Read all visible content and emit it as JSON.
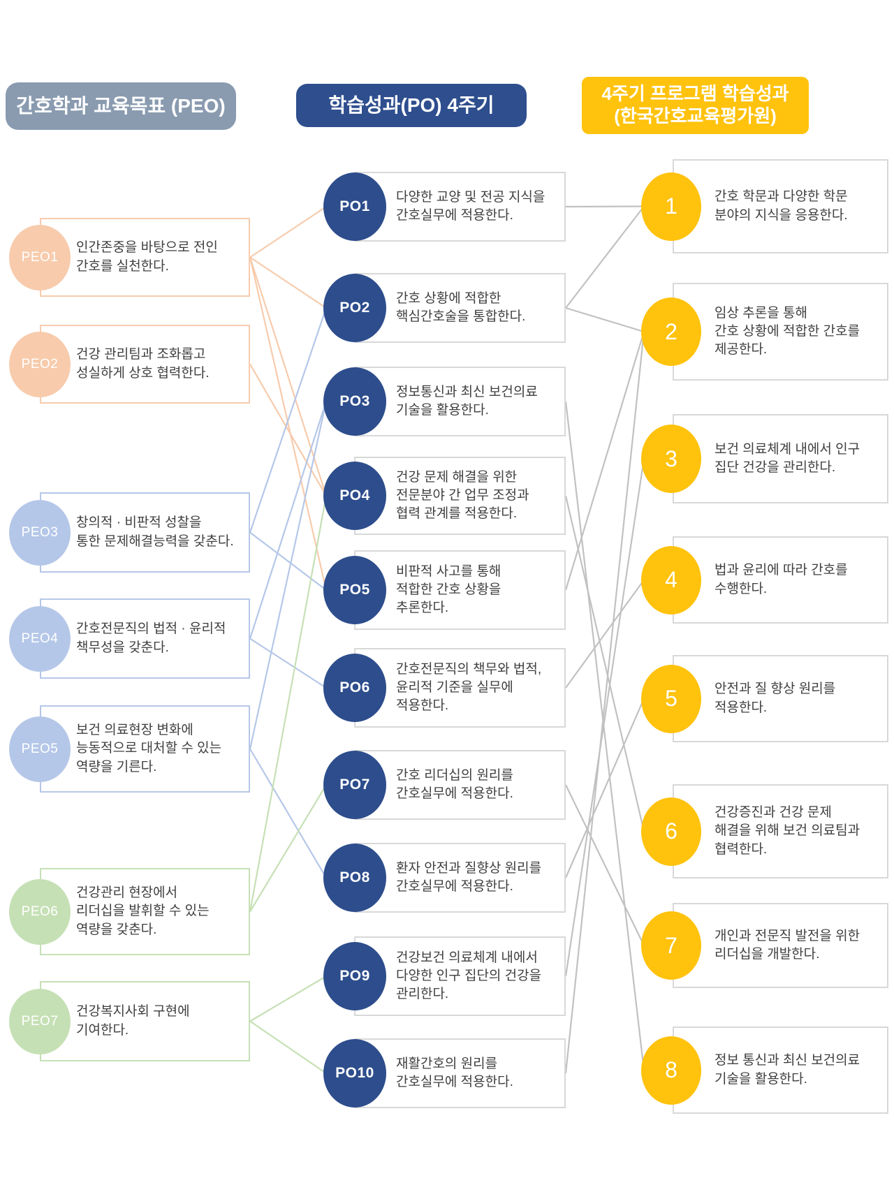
{
  "headers": {
    "peo": "간호학과 교육목표 (PEO)",
    "po": "학습성과(PO) 4주기",
    "kabone": "4주기 프로그램 학습성과\n(한국간호교육평가원)"
  },
  "colors": {
    "header_peo_bg": "#8a9bb0",
    "header_po_bg": "#2e4e8e",
    "header_kabone_bg": "#ffc20d",
    "peach": "#f7cbac",
    "light_blue": "#b5c7e8",
    "light_green": "#c6e0b5",
    "po_circle": "#2d4d8c",
    "k_circle": "#ffc20d",
    "gray_line": "#c1c1c1",
    "gray_border": "#d8d8d8",
    "text": "#3f3f3f"
  },
  "peo_items": [
    {
      "id": "PEO1",
      "label": "PEO1",
      "theme": "peach",
      "text": "인간존중을 바탕으로 전인\n간호를 실천한다."
    },
    {
      "id": "PEO2",
      "label": "PEO2",
      "theme": "peach",
      "text": "건강 관리팀과 조화롭고\n성실하게 상호 협력한다."
    },
    {
      "id": "PEO3",
      "label": "PEO3",
      "theme": "light_blue",
      "text": "창의적 · 비판적 성찰을\n통한 문제해결능력을 갖춘다."
    },
    {
      "id": "PEO4",
      "label": "PEO4",
      "theme": "light_blue",
      "text": "간호전문직의 법적 · 윤리적\n책무성을 갖춘다."
    },
    {
      "id": "PEO5",
      "label": "PEO5",
      "theme": "light_blue",
      "text": "보건 의료현장 변화에\n능동적으로 대처할 수 있는\n역량을 기른다."
    },
    {
      "id": "PEO6",
      "label": "PEO6",
      "theme": "light_green",
      "text": "건강관리 현장에서\n리더십을 발휘할 수 있는\n역량을 갖춘다."
    },
    {
      "id": "PEO7",
      "label": "PEO7",
      "theme": "light_green",
      "text": "건강복지사회 구현에\n기여한다."
    }
  ],
  "po_items": [
    {
      "id": "PO1",
      "label": "PO1",
      "text": "다양한 교양 및 전공 지식을\n간호실무에 적용한다."
    },
    {
      "id": "PO2",
      "label": "PO2",
      "text": "간호 상황에 적합한\n핵심간호술을 통합한다."
    },
    {
      "id": "PO3",
      "label": "PO3",
      "text": "정보통신과 최신 보건의료\n기술을 활용한다."
    },
    {
      "id": "PO4",
      "label": "PO4",
      "text": "건강 문제 해결을 위한\n전문분야 간 업무 조정과\n협력 관계를 적용한다."
    },
    {
      "id": "PO5",
      "label": "PO5",
      "text": "비판적 사고를 통해\n적합한 간호 상황을\n추론한다."
    },
    {
      "id": "PO6",
      "label": "PO6",
      "text": "간호전문직의 책무와 법적,\n윤리적 기준을 실무에\n적용한다."
    },
    {
      "id": "PO7",
      "label": "PO7",
      "text": "간호 리더십의 원리를\n간호실무에 적용한다."
    },
    {
      "id": "PO8",
      "label": "PO8",
      "text": "환자 안전과 질향상 원리를\n간호실무에 적용한다."
    },
    {
      "id": "PO9",
      "label": "PO9",
      "text": "건강보건 의료체계 내에서\n다양한 인구 집단의 건강을\n관리한다."
    },
    {
      "id": "PO10",
      "label": "PO10",
      "text": "재활간호의 원리를\n간호실무에 적용한다."
    }
  ],
  "kabone_items": [
    {
      "id": "K1",
      "label": "1",
      "text": "간호 학문과 다양한 학문\n분야의 지식을 응용한다."
    },
    {
      "id": "K2",
      "label": "2",
      "text": "임상 추론을 통해\n간호 상황에 적합한 간호를\n제공한다."
    },
    {
      "id": "K3",
      "label": "3",
      "text": "보건 의료체계 내에서 인구\n집단 건강을 관리한다."
    },
    {
      "id": "K4",
      "label": "4",
      "text": "법과 윤리에 따라 간호를\n수행한다."
    },
    {
      "id": "K5",
      "label": "5",
      "text": "안전과 질 향상 원리를\n적용한다."
    },
    {
      "id": "K6",
      "label": "6",
      "text": "건강증진과 건강 문제\n해결을 위해 보건 의료팀과\n협력한다."
    },
    {
      "id": "K7",
      "label": "7",
      "text": "개인과 전문직 발전을 위한\n리더십을 개발한다."
    },
    {
      "id": "K8",
      "label": "8",
      "text": "정보 통신과 최신 보건의료\n기술을 활용한다."
    }
  ],
  "connections": {
    "peo_to_po": [
      [
        "PEO1",
        "PO1"
      ],
      [
        "PEO1",
        "PO2"
      ],
      [
        "PEO1",
        "PO4"
      ],
      [
        "PEO1",
        "PO5"
      ],
      [
        "PEO2",
        "PO4"
      ],
      [
        "PEO3",
        "PO2"
      ],
      [
        "PEO3",
        "PO5"
      ],
      [
        "PEO4",
        "PO3"
      ],
      [
        "PEO4",
        "PO6"
      ],
      [
        "PEO5",
        "PO3"
      ],
      [
        "PEO5",
        "PO8"
      ],
      [
        "PEO6",
        "PO4"
      ],
      [
        "PEO6",
        "PO7"
      ],
      [
        "PEO7",
        "PO9"
      ],
      [
        "PEO7",
        "PO10"
      ]
    ],
    "po_to_kabone": [
      [
        "PO1",
        "K1"
      ],
      [
        "PO2",
        "K1"
      ],
      [
        "PO2",
        "K2"
      ],
      [
        "PO3",
        "K8"
      ],
      [
        "PO4",
        "K6"
      ],
      [
        "PO5",
        "K2"
      ],
      [
        "PO6",
        "K4"
      ],
      [
        "PO7",
        "K7"
      ],
      [
        "PO8",
        "K5"
      ],
      [
        "PO9",
        "K3"
      ],
      [
        "PO10",
        "K2"
      ]
    ]
  }
}
